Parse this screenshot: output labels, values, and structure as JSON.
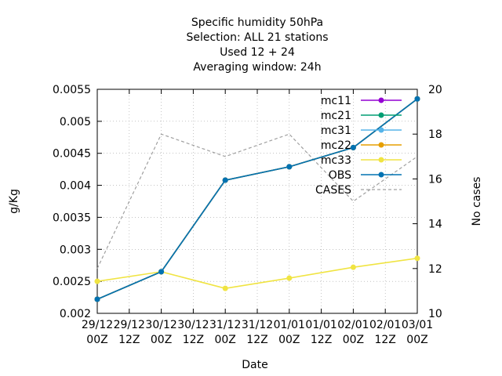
{
  "chart_data": {
    "type": "line",
    "title_lines": [
      "Specific humidity 50hPa",
      "Selection: ALL      21 stations",
      "Used  12 + 24",
      "Averaging window: 24h"
    ],
    "xlabel": "Date",
    "ylabel": "g/Kg",
    "y2label": "No cases",
    "x_ticks": [
      [
        "29/12",
        "00Z"
      ],
      [
        "29/12",
        "12Z"
      ],
      [
        "30/12",
        "00Z"
      ],
      [
        "30/12",
        "12Z"
      ],
      [
        "31/12",
        "00Z"
      ],
      [
        "31/12",
        "12Z"
      ],
      [
        "01/01",
        "00Z"
      ],
      [
        "01/01",
        "12Z"
      ],
      [
        "02/01",
        "00Z"
      ],
      [
        "02/01",
        "12Z"
      ],
      [
        "03/01",
        "00Z"
      ]
    ],
    "ylim": [
      0.002,
      0.0055
    ],
    "y_ticks": [
      "0.002",
      "0.0025",
      "0.003",
      "0.0035",
      "0.004",
      "0.0045",
      "0.005",
      "0.0055"
    ],
    "y2lim": [
      10,
      20
    ],
    "y2_ticks": [
      "10",
      "12",
      "14",
      "16",
      "18",
      "20"
    ],
    "x_points": [
      0,
      2,
      4,
      6,
      8,
      10
    ],
    "legend_position": "top-right",
    "series": [
      {
        "name": "mc11",
        "color": "#9400d3",
        "style": "line-points",
        "axis": "y",
        "values": [
          0.00222,
          0.00265,
          0.00408,
          0.00429,
          0.00459,
          0.00535
        ]
      },
      {
        "name": "mc21",
        "color": "#009e73",
        "style": "line-points",
        "axis": "y",
        "values": [
          0.00222,
          0.00265,
          0.00408,
          0.00429,
          0.00459,
          0.00535
        ]
      },
      {
        "name": "mc31",
        "color": "#56b4e9",
        "style": "line-points",
        "axis": "y",
        "values": [
          0.00222,
          0.00265,
          0.00408,
          0.00429,
          0.00459,
          0.00535
        ]
      },
      {
        "name": "mc22",
        "color": "#e69f00",
        "style": "line-points",
        "axis": "y",
        "values": [
          0.00222,
          0.00265,
          0.00408,
          0.00429,
          0.00459,
          0.00535
        ]
      },
      {
        "name": "mc33",
        "color": "#f0e442",
        "style": "line-points",
        "axis": "y",
        "values": [
          0.0025,
          0.00265,
          0.00239,
          0.00255,
          0.00272,
          0.00286
        ]
      },
      {
        "name": "OBS",
        "color": "#0072b2",
        "style": "line-points",
        "axis": "y",
        "values": [
          0.00222,
          0.00265,
          0.00408,
          0.00429,
          0.00459,
          0.00535
        ]
      },
      {
        "name": "CASES",
        "color": "#a0a0a0",
        "style": "dashed",
        "axis": "y2",
        "values": [
          12,
          18,
          17,
          18,
          15,
          17
        ]
      }
    ]
  }
}
